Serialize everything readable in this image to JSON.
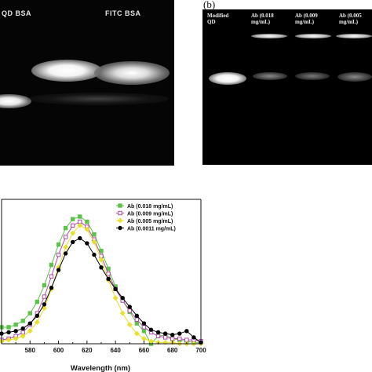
{
  "panel_a": {
    "label_qd_bsa": "QD BSA",
    "label_fitc_bsa": "FITC BSA"
  },
  "panel_b": {
    "tag": "(b)",
    "lanes": [
      {
        "line1": "Modified",
        "line2": "QD"
      },
      {
        "line1": "Ab (0.018",
        "line2": "mg/mL)"
      },
      {
        "line1": "Ab (0.009",
        "line2": "mg/mL)"
      },
      {
        "line1": "Ab (0.005",
        "line2": "mg/mL)"
      }
    ]
  },
  "colors": {
    "series_1": "#5cc24a",
    "series_2": "#b04aa8",
    "series_3": "#e8e02c",
    "series_4": "#000000"
  },
  "chart_data": {
    "type": "line",
    "title": "",
    "xlabel": "Wavelength (nm)",
    "ylabel": "",
    "xlim": [
      560,
      700
    ],
    "xticks": [
      580,
      600,
      620,
      640,
      660,
      680,
      700
    ],
    "ylim": [
      0,
      1
    ],
    "grid": false,
    "legend_position": "top-right",
    "x": [
      560,
      565,
      570,
      575,
      580,
      585,
      590,
      595,
      600,
      605,
      610,
      615,
      620,
      625,
      630,
      635,
      640,
      645,
      650,
      655,
      660,
      665,
      670,
      675,
      680,
      685,
      690,
      695,
      700
    ],
    "series": [
      {
        "name": "Ab (0.018 mg/mL)",
        "marker": "filled-square",
        "values": [
          0.13,
          0.13,
          0.15,
          0.18,
          0.24,
          0.33,
          0.46,
          0.62,
          0.78,
          0.91,
          0.98,
          1.0,
          0.96,
          0.86,
          0.73,
          0.59,
          0.45,
          0.34,
          0.25,
          0.16,
          0.1,
          0.0,
          0.06,
          0.07,
          0.04,
          0.03,
          0.02,
          0.01,
          0.01
        ]
      },
      {
        "name": "Ab (0.009 mg/mL)",
        "marker": "open-square",
        "values": [
          0.03,
          0.04,
          0.06,
          0.09,
          0.15,
          0.24,
          0.37,
          0.53,
          0.7,
          0.84,
          0.93,
          0.96,
          0.92,
          0.82,
          0.69,
          0.55,
          0.43,
          0.34,
          0.26,
          0.19,
          0.13,
          0.09,
          0.06,
          0.05,
          0.04,
          0.04,
          0.03,
          0.03,
          0.02
        ]
      },
      {
        "name": "Ab (0.005 mg/mL)",
        "marker": "filled-diamond",
        "values": [
          0.02,
          0.03,
          0.04,
          0.06,
          0.1,
          0.17,
          0.28,
          0.43,
          0.6,
          0.76,
          0.87,
          0.93,
          0.9,
          0.8,
          0.66,
          0.5,
          0.36,
          0.24,
          0.15,
          0.08,
          0.04,
          0.02,
          0.01,
          0.01,
          0.01,
          0.0,
          0.0,
          0.0,
          0.0
        ]
      },
      {
        "name": "Ab (0.0011 mg/mL)",
        "marker": "filled-circle",
        "values": [
          0.08,
          0.09,
          0.1,
          0.12,
          0.16,
          0.22,
          0.31,
          0.44,
          0.58,
          0.71,
          0.8,
          0.83,
          0.79,
          0.7,
          0.6,
          0.51,
          0.43,
          0.36,
          0.29,
          0.22,
          0.16,
          0.11,
          0.09,
          0.08,
          0.07,
          0.08,
          0.1,
          0.05,
          0.01
        ]
      }
    ]
  }
}
